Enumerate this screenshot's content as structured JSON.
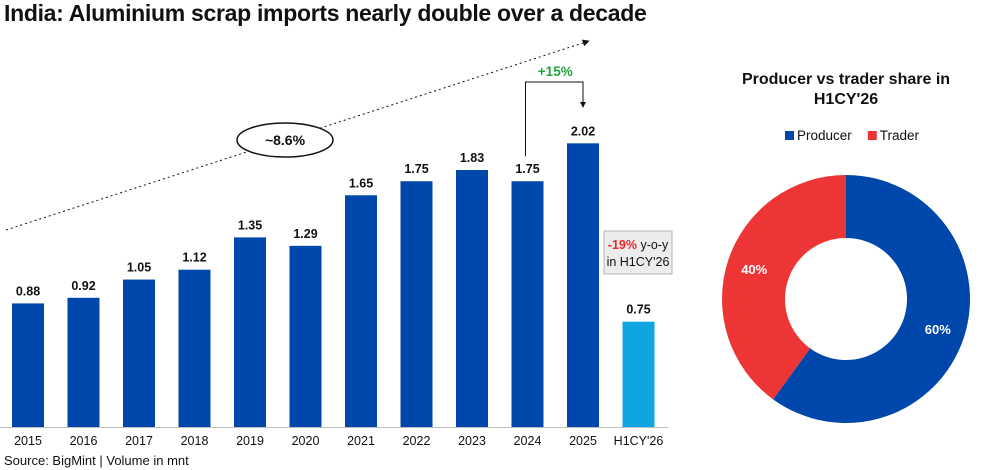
{
  "title": "India: Aluminium scrap imports nearly double over a decade",
  "source": "Source: BigMint | Volume in mnt",
  "chart_data": [
    {
      "type": "bar",
      "title": "India: Aluminium scrap imports nearly double over a decade",
      "categories": [
        "2015",
        "2016",
        "2017",
        "2018",
        "2019",
        "2020",
        "2021",
        "2022",
        "2023",
        "2024",
        "2025",
        "H1CY'26"
      ],
      "values": [
        0.88,
        0.92,
        1.05,
        1.12,
        1.35,
        1.29,
        1.65,
        1.75,
        1.83,
        1.75,
        2.02,
        0.75
      ],
      "value_labels": [
        "0.88",
        "0.92",
        "1.05",
        "1.12",
        "1.35",
        "1.29",
        "1.65",
        "1.75",
        "1.83",
        "1.75",
        "2.02",
        "0.75"
      ],
      "ylim": [
        0,
        2.3
      ],
      "grid": false,
      "colors": {
        "primary": "#0047AB",
        "highlight": "#0EA5E0"
      },
      "highlight_index": 11,
      "annotations": {
        "cagr": "~8.6%",
        "growth_2025": "+15%",
        "growth_color": "#22A33A",
        "yoy_value": "-19%",
        "yoy_color": "#E8282B",
        "yoy_text_1": " y-o-y",
        "yoy_text_2": "in H1CY'26"
      }
    },
    {
      "type": "pie",
      "style": "donut",
      "title": [
        "Producer vs trader share in",
        "H1CY'26"
      ],
      "legend_position": "top",
      "slices": [
        {
          "name": "Producer",
          "value": 60,
          "label": "60%",
          "color": "#0047AB"
        },
        {
          "name": "Trader",
          "value": 40,
          "label": "40%",
          "color": "#EE3536"
        }
      ]
    }
  ]
}
